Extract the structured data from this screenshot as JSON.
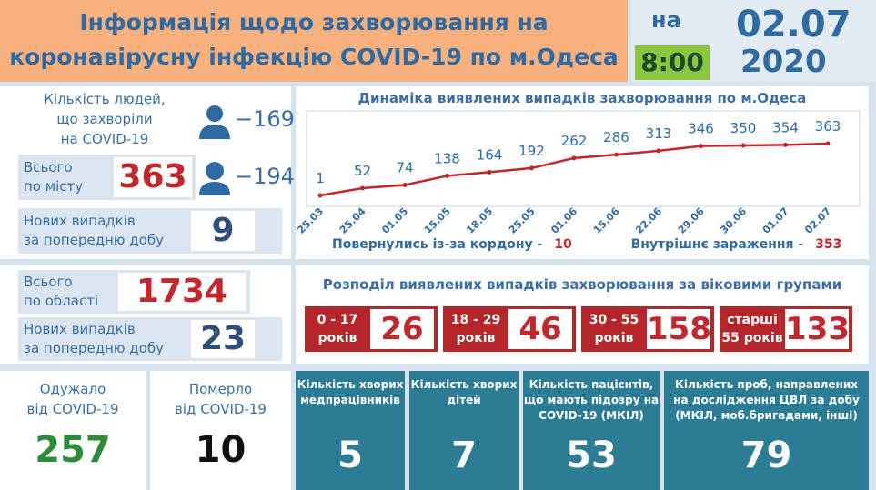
{
  "header": {
    "title_lines": [
      "Інформація щодо захворювання на",
      "коронавірусну інфекцію COVID-19 по м.Одеса"
    ],
    "date_prefix": "на",
    "time": "8:00",
    "date": "02.07",
    "year": "2020"
  },
  "city": {
    "label_lines": [
      "Кількість людей,",
      "що захворіли",
      "на COVID-19"
    ],
    "male": "−169",
    "female": "−194",
    "total_label_lines": [
      "Всього",
      "по місту"
    ],
    "total": 363,
    "new_label_lines": [
      "Нових випадків",
      "за попередню добу"
    ],
    "new": 9
  },
  "region": {
    "total_label_lines": [
      "Всього",
      "по області"
    ],
    "total": 1734,
    "new_label_lines": [
      "Нових випадків",
      "за попередню добу"
    ],
    "new": 23
  },
  "recovered": {
    "label_lines": [
      "Одужало",
      "від COVID-19"
    ],
    "value": 257
  },
  "deaths": {
    "label_lines": [
      "Померло",
      "від COVID-19"
    ],
    "value": 10
  },
  "chart_data": {
    "type": "line",
    "title": "Динаміка виявлених випадків захворювання по м.Одеса",
    "categories": [
      "25.03",
      "25.04",
      "01.05",
      "15.05",
      "18.05",
      "25.05",
      "01.06",
      "15.06",
      "22.06",
      "29.06",
      "30.06",
      "01.07",
      "02.07"
    ],
    "values": [
      1,
      52,
      74,
      138,
      164,
      192,
      262,
      286,
      313,
      346,
      350,
      354,
      363
    ],
    "color": "#c0282d"
  },
  "sources": {
    "returned_label": "Повернулись із-за кордону -",
    "returned": 10,
    "internal_label": "Внутрішнє зараження -",
    "internal": 353
  },
  "age": {
    "title": "Розподіл виявлених випадків захворювання за віковими групами",
    "groups": [
      {
        "label_lines": [
          "0 - 17",
          "років"
        ],
        "value": 26
      },
      {
        "label_lines": [
          "18 - 29",
          "років"
        ],
        "value": 46
      },
      {
        "label_lines": [
          "30 - 55",
          "років"
        ],
        "value": 158
      },
      {
        "label_lines": [
          "старші за",
          "55 років"
        ],
        "value": 133
      }
    ]
  },
  "stats": [
    {
      "label_lines": [
        "Кількість хворих",
        "медпрацівників"
      ],
      "value": 5
    },
    {
      "label_lines": [
        "Кількість хворих",
        "дітей"
      ],
      "value": 7
    },
    {
      "label_lines": [
        "Кількість пацієнтів,",
        "що мають підозру на",
        "COVID-19 (МКІЛ)"
      ],
      "value": 53
    },
    {
      "label_lines": [
        "Кількість проб, направлених",
        "на дослідження ЦВЛ за добу",
        "(МКІЛ, моб.бригадами, інші)"
      ],
      "value": 79
    }
  ]
}
